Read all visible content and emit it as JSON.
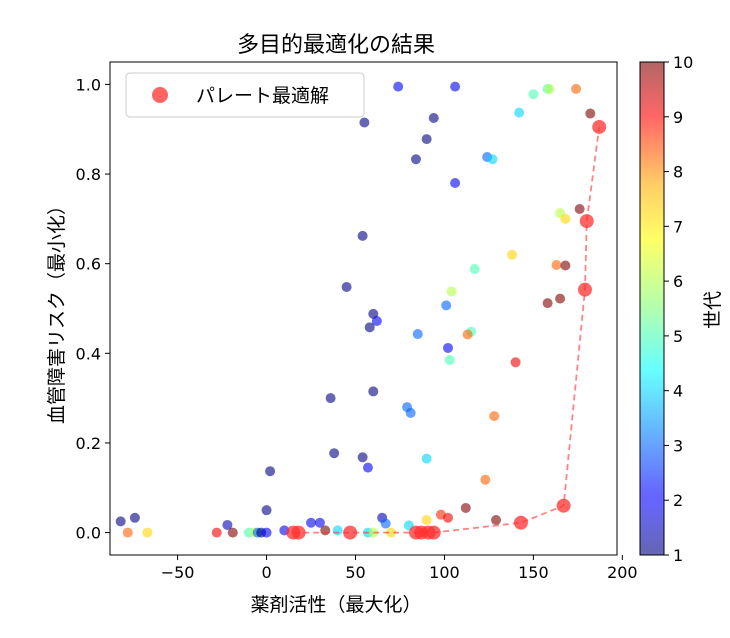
{
  "chart_data": {
    "type": "scatter",
    "title": "多目的最適化の結果",
    "xlabel": "薬剤活性（最大化）",
    "ylabel": "血管障害リスク（最小化）",
    "xlim": [
      -88,
      197
    ],
    "ylim": [
      -0.05,
      1.05
    ],
    "x_ticks": [
      -50,
      0,
      50,
      100,
      150,
      200
    ],
    "y_ticks": [
      0.0,
      0.2,
      0.4,
      0.6,
      0.8,
      1.0
    ],
    "x_tick_labels": [
      "−50",
      "0",
      "50",
      "100",
      "150",
      "200"
    ],
    "y_tick_labels": [
      "0.0",
      "0.2",
      "0.4",
      "0.6",
      "0.8",
      "1.0"
    ],
    "grid": false,
    "legend": {
      "position": "top-left",
      "label": "パレート最適解"
    },
    "colorbar": {
      "label": "世代",
      "range": [
        1,
        10
      ],
      "ticks": [
        1,
        2,
        3,
        4,
        5,
        6,
        7,
        8,
        9,
        10
      ],
      "colormap": "jet",
      "alpha": 0.6
    },
    "series": [
      {
        "kind": "population",
        "points": [
          {
            "x": -82,
            "y": 0.025,
            "gen": 1
          },
          {
            "x": -74,
            "y": 0.033,
            "gen": 1
          },
          {
            "x": 74,
            "y": 0.995,
            "gen": 2
          },
          {
            "x": 106,
            "y": 0.995,
            "gen": 2
          },
          {
            "x": 55,
            "y": 0.915,
            "gen": 1
          },
          {
            "x": 94,
            "y": 0.925,
            "gen": 1
          },
          {
            "x": 90,
            "y": 0.878,
            "gen": 1
          },
          {
            "x": 84,
            "y": 0.833,
            "gen": 1
          },
          {
            "x": 106,
            "y": 0.78,
            "gen": 2
          },
          {
            "x": 124,
            "y": 0.838,
            "gen": 3
          },
          {
            "x": 127,
            "y": 0.833,
            "gen": 4
          },
          {
            "x": 54,
            "y": 0.662,
            "gen": 1
          },
          {
            "x": 45,
            "y": 0.548,
            "gen": 1
          },
          {
            "x": 60,
            "y": 0.488,
            "gen": 1
          },
          {
            "x": 62,
            "y": 0.472,
            "gen": 2
          },
          {
            "x": 58,
            "y": 0.458,
            "gen": 1
          },
          {
            "x": 85,
            "y": 0.443,
            "gen": 3
          },
          {
            "x": 101,
            "y": 0.507,
            "gen": 3
          },
          {
            "x": 104,
            "y": 0.538,
            "gen": 6
          },
          {
            "x": 102,
            "y": 0.412,
            "gen": 2
          },
          {
            "x": 103,
            "y": 0.385,
            "gen": 5
          },
          {
            "x": 115,
            "y": 0.448,
            "gen": 5
          },
          {
            "x": 113,
            "y": 0.442,
            "gen": 8
          },
          {
            "x": 117,
            "y": 0.588,
            "gen": 5
          },
          {
            "x": 60,
            "y": 0.315,
            "gen": 1
          },
          {
            "x": 36,
            "y": 0.3,
            "gen": 1
          },
          {
            "x": 79,
            "y": 0.28,
            "gen": 3
          },
          {
            "x": 81,
            "y": 0.267,
            "gen": 3
          },
          {
            "x": 38,
            "y": 0.177,
            "gen": 1
          },
          {
            "x": 54,
            "y": 0.168,
            "gen": 1
          },
          {
            "x": 57,
            "y": 0.145,
            "gen": 2
          },
          {
            "x": 90,
            "y": 0.165,
            "gen": 4
          },
          {
            "x": 2,
            "y": 0.137,
            "gen": 1
          },
          {
            "x": 0,
            "y": 0.05,
            "gen": 1
          },
          {
            "x": -67,
            "y": 0.0,
            "gen": 7
          },
          {
            "x": -78,
            "y": 0.0,
            "gen": 8
          },
          {
            "x": -28,
            "y": 0.0,
            "gen": 9
          },
          {
            "x": -22,
            "y": 0.017,
            "gen": 1.5
          },
          {
            "x": -19,
            "y": 0.0,
            "gen": 10
          },
          {
            "x": -10,
            "y": 0.0,
            "gen": 5
          },
          {
            "x": -7,
            "y": 0.0,
            "gen": 6
          },
          {
            "x": -5,
            "y": 0.0,
            "gen": 3
          },
          {
            "x": -3,
            "y": 0.0,
            "gen": 1
          },
          {
            "x": 0,
            "y": 0.0,
            "gen": 2
          },
          {
            "x": 10,
            "y": 0.005,
            "gen": 2
          },
          {
            "x": 25,
            "y": 0.022,
            "gen": 2
          },
          {
            "x": 30,
            "y": 0.022,
            "gen": 2
          },
          {
            "x": 33,
            "y": 0.005,
            "gen": 10
          },
          {
            "x": 40,
            "y": 0.005,
            "gen": 4
          },
          {
            "x": 57,
            "y": 0.0,
            "gen": 4
          },
          {
            "x": 60,
            "y": 0.0,
            "gen": 6
          },
          {
            "x": 65,
            "y": 0.033,
            "gen": 1.5
          },
          {
            "x": 67,
            "y": 0.02,
            "gen": 3
          },
          {
            "x": 70,
            "y": 0.0,
            "gen": 7
          },
          {
            "x": 80,
            "y": 0.016,
            "gen": 4
          },
          {
            "x": 88,
            "y": 0.0,
            "gen": 8
          },
          {
            "x": 90,
            "y": 0.028,
            "gen": 7
          },
          {
            "x": 98,
            "y": 0.04,
            "gen": 8.5
          },
          {
            "x": 102,
            "y": 0.033,
            "gen": 9
          },
          {
            "x": 112,
            "y": 0.055,
            "gen": 10
          },
          {
            "x": 123,
            "y": 0.118,
            "gen": 8
          },
          {
            "x": 128,
            "y": 0.26,
            "gen": 8
          },
          {
            "x": 129,
            "y": 0.028,
            "gen": 10
          },
          {
            "x": 140,
            "y": 0.38,
            "gen": 9
          },
          {
            "x": 142,
            "y": 0.937,
            "gen": 4
          },
          {
            "x": 150,
            "y": 0.978,
            "gen": 5
          },
          {
            "x": 158,
            "y": 0.99,
            "gen": 5
          },
          {
            "x": 159,
            "y": 0.99,
            "gen": 6
          },
          {
            "x": 174,
            "y": 0.99,
            "gen": 8
          },
          {
            "x": 182,
            "y": 0.935,
            "gen": 10
          },
          {
            "x": 138,
            "y": 0.62,
            "gen": 7
          },
          {
            "x": 165,
            "y": 0.713,
            "gen": 6
          },
          {
            "x": 168,
            "y": 0.7,
            "gen": 7
          },
          {
            "x": 176,
            "y": 0.722,
            "gen": 10
          },
          {
            "x": 163,
            "y": 0.597,
            "gen": 8
          },
          {
            "x": 168,
            "y": 0.596,
            "gen": 10
          },
          {
            "x": 158,
            "y": 0.512,
            "gen": 10
          },
          {
            "x": 165,
            "y": 0.522,
            "gen": 10
          }
        ]
      },
      {
        "kind": "pareto",
        "name": "パレート最適解",
        "color": "#ff3030",
        "points": [
          {
            "x": 15,
            "y": 0.0
          },
          {
            "x": 18,
            "y": 0.0
          },
          {
            "x": 47,
            "y": 0.0
          },
          {
            "x": 84,
            "y": 0.0
          },
          {
            "x": 87,
            "y": 0.0
          },
          {
            "x": 91,
            "y": 0.0
          },
          {
            "x": 94,
            "y": 0.0
          },
          {
            "x": 143,
            "y": 0.022
          },
          {
            "x": 167,
            "y": 0.06
          },
          {
            "x": 179,
            "y": 0.542
          },
          {
            "x": 180,
            "y": 0.695
          },
          {
            "x": 187,
            "y": 0.905
          }
        ]
      }
    ]
  }
}
